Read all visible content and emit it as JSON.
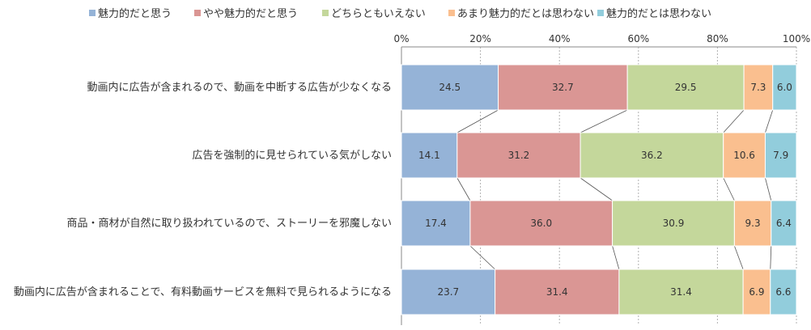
{
  "chart_data": {
    "type": "bar",
    "orientation": "horizontal",
    "stacked": "100%",
    "categories": [
      "動画内に広告が含まれるので、動画を中断する広告が少なくなる",
      "広告を強制的に見せられている気がしない",
      "商品・商材が自然に取り扱われているので、ストーリーを邪魔しない",
      "動画内に広告が含まれることで、有料動画サービスを無料で見られるようになる"
    ],
    "series": [
      {
        "name": "魅力的だと思う",
        "color": "#95b3d7",
        "values": [
          24.5,
          14.1,
          17.4,
          23.7
        ]
      },
      {
        "name": "やや魅力的だと思う",
        "color": "#da9694",
        "values": [
          32.7,
          31.2,
          36.0,
          31.4
        ]
      },
      {
        "name": "どちらともいえない",
        "color": "#c4d79b",
        "values": [
          29.5,
          36.2,
          30.9,
          31.4
        ]
      },
      {
        "name": "あまり魅力的だとは思わない",
        "color": "#fabf8f",
        "values": [
          7.3,
          10.6,
          9.3,
          6.9
        ]
      },
      {
        "name": "魅力的だとは思わない",
        "color": "#92cddc",
        "values": [
          6.0,
          7.9,
          6.4,
          6.6
        ]
      }
    ],
    "value_labels": [
      [
        "24.5",
        "14.1",
        "17.4",
        "23.7"
      ],
      [
        "32.7",
        "31.2",
        "36.0",
        "31.4"
      ],
      [
        "29.5",
        "36.2",
        "30.9",
        "31.4"
      ],
      [
        "7.3",
        "10.6",
        "9.3",
        "6.9"
      ],
      [
        "6.0",
        "7.9",
        "6.4",
        "6.6"
      ]
    ],
    "x_ticks": [
      "0%",
      "20%",
      "40%",
      "60%",
      "80%",
      "100%"
    ],
    "xlim": [
      0,
      100
    ],
    "legend_position": "top",
    "series_lines": true,
    "grid": true
  }
}
